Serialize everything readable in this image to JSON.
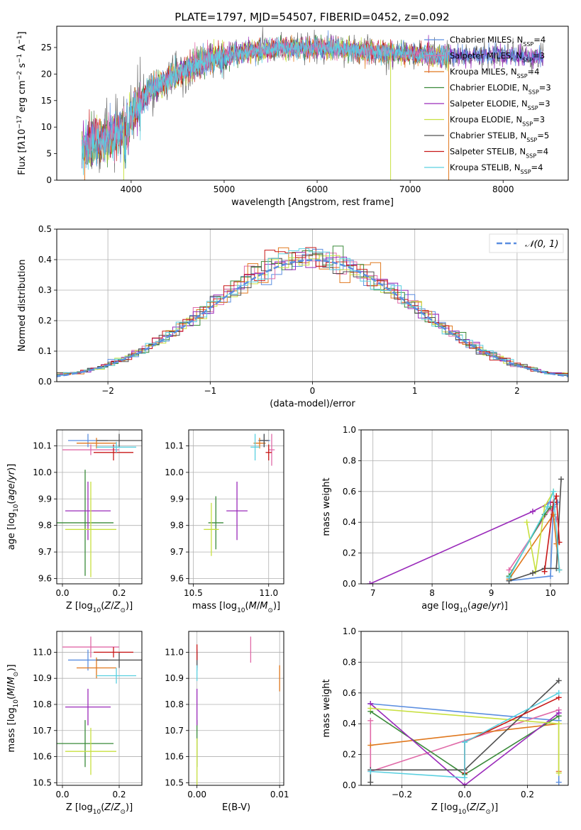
{
  "title": "PLATE=1797, MJD=54507, FIBERID=0452, z=0.092",
  "colors": {
    "chab_miles": "#5b8ee0",
    "salp_miles": "#e06aa8",
    "krou_miles": "#e0781e",
    "chab_elodie": "#3a8a3a",
    "salp_elodie": "#9a2aba",
    "krou_elodie": "#c8e040",
    "chab_stelib": "#505050",
    "salp_stelib": "#c81818",
    "krou_stelib": "#5ad0e0",
    "gauss": "#5b8ee0"
  },
  "chart_data": [
    {
      "type": "line",
      "id": "spectrum",
      "xlabel": "wavelength [Angstrom, rest frame]",
      "ylabel_html": "Flux [f<tspan font-style='italic'>λ</tspan>10<tspan baseline-shift='super' font-size='9'>−17</tspan> erg cm<tspan baseline-shift='super' font-size='9'>−2</tspan> s<tspan baseline-shift='super' font-size='9'>−1</tspan> A<tspan baseline-shift='super' font-size='9'>−1</tspan>]",
      "xlim": [
        3200,
        8700
      ],
      "ylim": [
        0,
        29
      ],
      "xticks": [
        4000,
        5000,
        6000,
        7000,
        8000
      ],
      "yticks": [
        0,
        5,
        10,
        15,
        20,
        25
      ],
      "continuum_x": [
        3500,
        3900,
        4000,
        4200,
        4500,
        4800,
        5200,
        5600,
        6000,
        6400,
        6800,
        7200,
        7600,
        8000,
        8400
      ],
      "continuum_y": [
        6.5,
        9,
        12,
        17,
        20,
        22.5,
        24,
        25,
        25,
        24.5,
        24,
        23.5,
        23.5,
        23.5,
        23
      ],
      "legend": [
        {
          "label": "Chabrier MILES, N",
          "sub": "SSP",
          "eq": "=4",
          "color": "chab_miles"
        },
        {
          "label": "Salpeter MILES, N",
          "sub": "SSP",
          "eq": "=3",
          "color": "salp_miles"
        },
        {
          "label": "Kroupa MILES, N",
          "sub": "SSP",
          "eq": "=4",
          "color": "krou_miles"
        },
        {
          "label": "Chabrier ELODIE, N",
          "sub": "SSP",
          "eq": "=3",
          "color": "chab_elodie"
        },
        {
          "label": "Salpeter ELODIE, N",
          "sub": "SSP",
          "eq": "=3",
          "color": "salp_elodie"
        },
        {
          "label": "Kroupa ELODIE, N",
          "sub": "SSP",
          "eq": "=3",
          "color": "krou_elodie"
        },
        {
          "label": "Chabrier STELIB, N",
          "sub": "SSP",
          "eq": "=5",
          "color": "chab_stelib"
        },
        {
          "label": "Salpeter STELIB, N",
          "sub": "SSP",
          "eq": "=4",
          "color": "salp_stelib"
        },
        {
          "label": "Kroupa STELIB, N",
          "sub": "SSP",
          "eq": "=4",
          "color": "krou_stelib"
        }
      ]
    },
    {
      "type": "line",
      "id": "residuals",
      "xlabel": "(data-model)/error",
      "ylabel": "Normed distribution",
      "xlim": [
        -2.5,
        2.5
      ],
      "ylim": [
        0,
        0.5
      ],
      "xticks": [
        -2,
        -1,
        0,
        1,
        2
      ],
      "xticklabels": [
        "−2",
        "−1",
        "0",
        "1",
        "2"
      ],
      "yticks": [
        0,
        0.1,
        0.2,
        0.3,
        0.4,
        0.5
      ],
      "yticklabels": [
        "0.0",
        "0.1",
        "0.2",
        "0.3",
        "0.4",
        "0.5"
      ],
      "gauss_label": "𝒩(0, 1)",
      "bin_width": 0.1
    },
    {
      "type": "scatter",
      "id": "age_vs_Z",
      "xlabel_html": "Z [log<tspan baseline-shift='sub' font-size='9'>10</tspan>(<tspan font-style='italic'>Z</tspan>/<tspan font-style='italic'>Z</tspan><tspan baseline-shift='sub' font-size='9'>⊙</tspan>)]",
      "ylabel_html": "age  [log<tspan baseline-shift='sub' font-size='9'>10</tspan>(<tspan font-style='italic'>age</tspan>/<tspan font-style='italic'>yr</tspan>)]",
      "xlim": [
        -0.02,
        0.28
      ],
      "ylim": [
        9.58,
        10.16
      ],
      "xticks": [
        0.0,
        0.2
      ],
      "xticklabels": [
        "0.0",
        "0.2"
      ],
      "yticks": [
        9.6,
        9.7,
        9.8,
        9.9,
        10.0,
        10.1
      ],
      "yticklabels": [
        "9.6",
        "9.7",
        "9.8",
        "9.9",
        "10.0",
        "10.1"
      ],
      "points": [
        {
          "c": "chab_miles",
          "x": 0.09,
          "xe": 0.07,
          "y": 10.12,
          "ye": 0.025
        },
        {
          "c": "salp_miles",
          "x": 0.1,
          "xe": 0.1,
          "y": 10.085,
          "ye": 0.02
        },
        {
          "c": "krou_miles",
          "x": 0.12,
          "xe": 0.07,
          "y": 10.11,
          "ye": 0.02
        },
        {
          "c": "chab_elodie",
          "x": 0.08,
          "xe": 0.1,
          "y": 9.81,
          "ye": 0.2
        },
        {
          "c": "salp_elodie",
          "x": 0.09,
          "xe": 0.08,
          "y": 9.855,
          "ye": 0.11
        },
        {
          "c": "krou_elodie",
          "x": 0.1,
          "xe": 0.09,
          "y": 9.785,
          "ye": 0.18
        },
        {
          "c": "chab_stelib",
          "x": 0.2,
          "xe": 0.08,
          "y": 10.12,
          "ye": 0.025
        },
        {
          "c": "salp_stelib",
          "x": 0.18,
          "xe": 0.07,
          "y": 10.075,
          "ye": 0.03
        },
        {
          "c": "krou_stelib",
          "x": 0.19,
          "xe": 0.07,
          "y": 10.095,
          "ye": 0.02
        }
      ]
    },
    {
      "type": "scatter",
      "id": "age_vs_mass",
      "xlabel_html": "mass [log<tspan baseline-shift='sub' font-size='9'>10</tspan>(<tspan font-style='italic'>M</tspan>/<tspan font-style='italic'>M</tspan><tspan baseline-shift='sub' font-size='9'>⊙</tspan>)]",
      "xlim": [
        10.47,
        11.1
      ],
      "ylim": [
        9.58,
        10.16
      ],
      "xticks": [
        10.5,
        11.0
      ],
      "xticklabels": [
        "10.5",
        "11.0"
      ],
      "yticks": [
        9.6,
        9.7,
        9.8,
        9.9,
        10.0,
        10.1
      ],
      "yticklabels": [
        "9.6",
        "9.7",
        "9.8",
        "9.9",
        "10.0",
        "10.1"
      ],
      "points": [
        {
          "c": "chab_miles",
          "x": 10.97,
          "xe": 0.04,
          "y": 10.12,
          "ye": 0.025
        },
        {
          "c": "salp_miles",
          "x": 11.02,
          "xe": 0.02,
          "y": 10.085,
          "ye": 0.06
        },
        {
          "c": "krou_miles",
          "x": 10.94,
          "xe": 0.04,
          "y": 10.11,
          "ye": 0.02
        },
        {
          "c": "chab_elodie",
          "x": 10.65,
          "xe": 0.05,
          "y": 9.81,
          "ye": 0.1
        },
        {
          "c": "salp_elodie",
          "x": 10.79,
          "xe": 0.07,
          "y": 9.855,
          "ye": 0.11
        },
        {
          "c": "krou_elodie",
          "x": 10.62,
          "xe": 0.05,
          "y": 9.785,
          "ye": 0.1
        },
        {
          "c": "chab_stelib",
          "x": 10.97,
          "xe": 0.03,
          "y": 10.12,
          "ye": 0.025
        },
        {
          "c": "salp_stelib",
          "x": 11.0,
          "xe": 0.02,
          "y": 10.075,
          "ye": 0.03
        },
        {
          "c": "krou_stelib",
          "x": 10.91,
          "xe": 0.03,
          "y": 10.095,
          "ye": 0.05
        }
      ]
    },
    {
      "type": "line",
      "id": "mass_weight_vs_age",
      "xlabel_html": "age  [log<tspan baseline-shift='sub' font-size='9'>10</tspan>(<tspan font-style='italic'>age</tspan>/<tspan font-style='italic'>yr</tspan>)]",
      "ylabel": "mass weight",
      "xlim": [
        6.8,
        10.3
      ],
      "ylim": [
        0,
        1.0
      ],
      "xticks": [
        7,
        8,
        9,
        10
      ],
      "yticks": [
        0,
        0.2,
        0.4,
        0.6,
        0.8,
        1.0
      ],
      "yticklabels": [
        "0.0",
        "0.2",
        "0.4",
        "0.6",
        "0.8",
        "1.0"
      ],
      "series": [
        {
          "c": "chab_miles",
          "x": [
            9.3,
            10.0,
            10.05,
            10.12
          ],
          "y": [
            0.02,
            0.05,
            0.5,
            0.53
          ]
        },
        {
          "c": "salp_miles",
          "x": [
            9.3,
            10.0,
            10.1
          ],
          "y": [
            0.09,
            0.49,
            0.42
          ]
        },
        {
          "c": "krou_miles",
          "x": [
            9.3,
            10.05,
            10.1,
            10.15
          ],
          "y": [
            0.03,
            0.45,
            0.26,
            0.09
          ]
        },
        {
          "c": "chab_elodie",
          "x": [
            9.3,
            9.9,
            10.0
          ],
          "y": [
            0.05,
            0.45,
            0.5
          ]
        },
        {
          "c": "salp_elodie",
          "x": [
            6.95,
            9.7,
            10.0
          ],
          "y": [
            0.0,
            0.47,
            0.53
          ]
        },
        {
          "c": "krou_elodie",
          "x": [
            9.6,
            9.75,
            9.9,
            10.05
          ],
          "y": [
            0.4,
            0.08,
            0.5,
            0.6
          ]
        },
        {
          "c": "chab_stelib",
          "x": [
            9.3,
            9.7,
            9.9,
            10.1,
            10.18
          ],
          "y": [
            0.02,
            0.07,
            0.1,
            0.1,
            0.68
          ]
        },
        {
          "c": "salp_stelib",
          "x": [
            9.9,
            10.05,
            10.1,
            10.15
          ],
          "y": [
            0.08,
            0.53,
            0.57,
            0.27
          ]
        },
        {
          "c": "krou_stelib",
          "x": [
            9.3,
            9.95,
            10.05,
            10.15
          ],
          "y": [
            0.04,
            0.5,
            0.6,
            0.09
          ]
        }
      ]
    },
    {
      "type": "scatter",
      "id": "mass_vs_Z",
      "xlabel_html": "Z [log<tspan baseline-shift='sub' font-size='9'>10</tspan>(<tspan font-style='italic'>Z</tspan>/<tspan font-style='italic'>Z</tspan><tspan baseline-shift='sub' font-size='9'>⊙</tspan>)]",
      "ylabel_html": "mass [log<tspan baseline-shift='sub' font-size='9'>10</tspan>(<tspan font-style='italic'>M</tspan>/<tspan font-style='italic'>M</tspan><tspan baseline-shift='sub' font-size='9'>⊙</tspan>)]",
      "xlim": [
        -0.02,
        0.28
      ],
      "ylim": [
        10.49,
        11.08
      ],
      "xticks": [
        0.0,
        0.2
      ],
      "xticklabels": [
        "0.0",
        "0.2"
      ],
      "yticks": [
        10.5,
        10.6,
        10.7,
        10.8,
        10.9,
        11.0
      ],
      "yticklabels": [
        "10.5",
        "10.6",
        "10.7",
        "10.8",
        "10.9",
        "11.0"
      ],
      "points": [
        {
          "c": "chab_miles",
          "x": 0.09,
          "xe": 0.07,
          "y": 10.97,
          "ye": 0.04
        },
        {
          "c": "salp_miles",
          "x": 0.1,
          "xe": 0.1,
          "y": 11.02,
          "ye": 0.04
        },
        {
          "c": "krou_miles",
          "x": 0.12,
          "xe": 0.07,
          "y": 10.94,
          "ye": 0.04
        },
        {
          "c": "chab_elodie",
          "x": 0.08,
          "xe": 0.1,
          "y": 10.65,
          "ye": 0.09
        },
        {
          "c": "salp_elodie",
          "x": 0.09,
          "xe": 0.08,
          "y": 10.79,
          "ye": 0.07
        },
        {
          "c": "krou_elodie",
          "x": 0.1,
          "xe": 0.09,
          "y": 10.62,
          "ye": 0.09
        },
        {
          "c": "chab_stelib",
          "x": 0.2,
          "xe": 0.08,
          "y": 10.97,
          "ye": 0.03
        },
        {
          "c": "salp_stelib",
          "x": 0.18,
          "xe": 0.07,
          "y": 11.0,
          "ye": 0.02
        },
        {
          "c": "krou_stelib",
          "x": 0.19,
          "xe": 0.07,
          "y": 10.91,
          "ye": 0.03
        }
      ]
    },
    {
      "type": "scatter",
      "id": "mass_vs_ebv",
      "xlabel": "E(B-V)",
      "xlim": [
        -0.001,
        0.0105
      ],
      "ylim": [
        10.49,
        11.08
      ],
      "xticks": [
        0.0,
        0.01
      ],
      "xticklabels": [
        "0.00",
        "0.01"
      ],
      "yticks": [
        10.5,
        10.6,
        10.7,
        10.8,
        10.9,
        11.0
      ],
      "yticklabels": [
        "10.5",
        "10.6",
        "10.7",
        "10.8",
        "10.9",
        "11.0"
      ],
      "points": [
        {
          "c": "chab_miles",
          "x": 0.0,
          "xe": 0.0,
          "y": 10.97,
          "ye": 0.04
        },
        {
          "c": "salp_miles",
          "x": 0.0065,
          "xe": 0.0,
          "y": 11.01,
          "ye": 0.05
        },
        {
          "c": "krou_miles",
          "x": 0.01,
          "xe": 0.0,
          "y": 10.9,
          "ye": 0.05
        },
        {
          "c": "chab_elodie",
          "x": 0.0,
          "xe": 0.0,
          "y": 10.65,
          "ye": 0.09
        },
        {
          "c": "salp_elodie",
          "x": 0.0,
          "xe": 0.0,
          "y": 10.79,
          "ye": 0.07
        },
        {
          "c": "krou_elodie",
          "x": 0.0,
          "xe": 0.0,
          "y": 10.58,
          "ye": 0.09
        },
        {
          "c": "chab_stelib",
          "x": 0.0,
          "xe": 0.0,
          "y": 10.97,
          "ye": 0.03
        },
        {
          "c": "salp_stelib",
          "x": 0.0,
          "xe": 0.0,
          "y": 11.0,
          "ye": 0.03
        },
        {
          "c": "krou_stelib",
          "x": 0.0,
          "xe": 0.0,
          "y": 10.92,
          "ye": 0.03
        }
      ]
    },
    {
      "type": "line",
      "id": "mass_weight_vs_Z",
      "xlabel_html": "Z [log<tspan baseline-shift='sub' font-size='9'>10</tspan>(<tspan font-style='italic'>Z</tspan>/<tspan font-style='italic'>Z</tspan><tspan baseline-shift='sub' font-size='9'>⊙</tspan>)]",
      "ylabel": "mass weight",
      "xlim": [
        -0.33,
        0.33
      ],
      "ylim": [
        0,
        1.0
      ],
      "xticks": [
        -0.2,
        0.0,
        0.2
      ],
      "xticklabels": [
        "−0.2",
        "0.0",
        "0.2"
      ],
      "yticks": [
        0,
        0.2,
        0.4,
        0.6,
        0.8,
        1.0
      ],
      "yticklabels": [
        "0.0",
        "0.2",
        "0.4",
        "0.6",
        "0.8",
        "1.0"
      ],
      "series": [
        {
          "c": "chab_miles",
          "x": [
            -0.3,
            0.3,
            0.3
          ],
          "y": [
            0.53,
            0.42,
            0.02
          ]
        },
        {
          "c": "salp_miles",
          "x": [
            -0.3,
            -0.3,
            0.3
          ],
          "y": [
            0.42,
            0.09,
            0.49
          ]
        },
        {
          "c": "krou_miles",
          "x": [
            -0.3,
            0.3,
            0.3
          ],
          "y": [
            0.26,
            0.4,
            0.09
          ]
        },
        {
          "c": "chab_elodie",
          "x": [
            -0.3,
            0.0,
            0.3
          ],
          "y": [
            0.48,
            0.07,
            0.45
          ]
        },
        {
          "c": "salp_elodie",
          "x": [
            -0.3,
            0.0,
            0.3
          ],
          "y": [
            0.53,
            0.0,
            0.47
          ]
        },
        {
          "c": "krou_elodie",
          "x": [
            -0.3,
            0.3,
            0.3
          ],
          "y": [
            0.5,
            0.4,
            0.08
          ]
        },
        {
          "c": "chab_stelib",
          "x": [
            -0.3,
            -0.3,
            0.0,
            0.3
          ],
          "y": [
            0.02,
            0.1,
            0.1,
            0.68
          ]
        },
        {
          "c": "salp_stelib",
          "x": [
            0.0,
            0.0,
            0.3
          ],
          "y": [
            0.08,
            0.28,
            0.57
          ]
        },
        {
          "c": "krou_stelib",
          "x": [
            -0.3,
            0.0,
            0.0,
            0.3
          ],
          "y": [
            0.09,
            0.05,
            0.28,
            0.6
          ]
        }
      ]
    }
  ]
}
